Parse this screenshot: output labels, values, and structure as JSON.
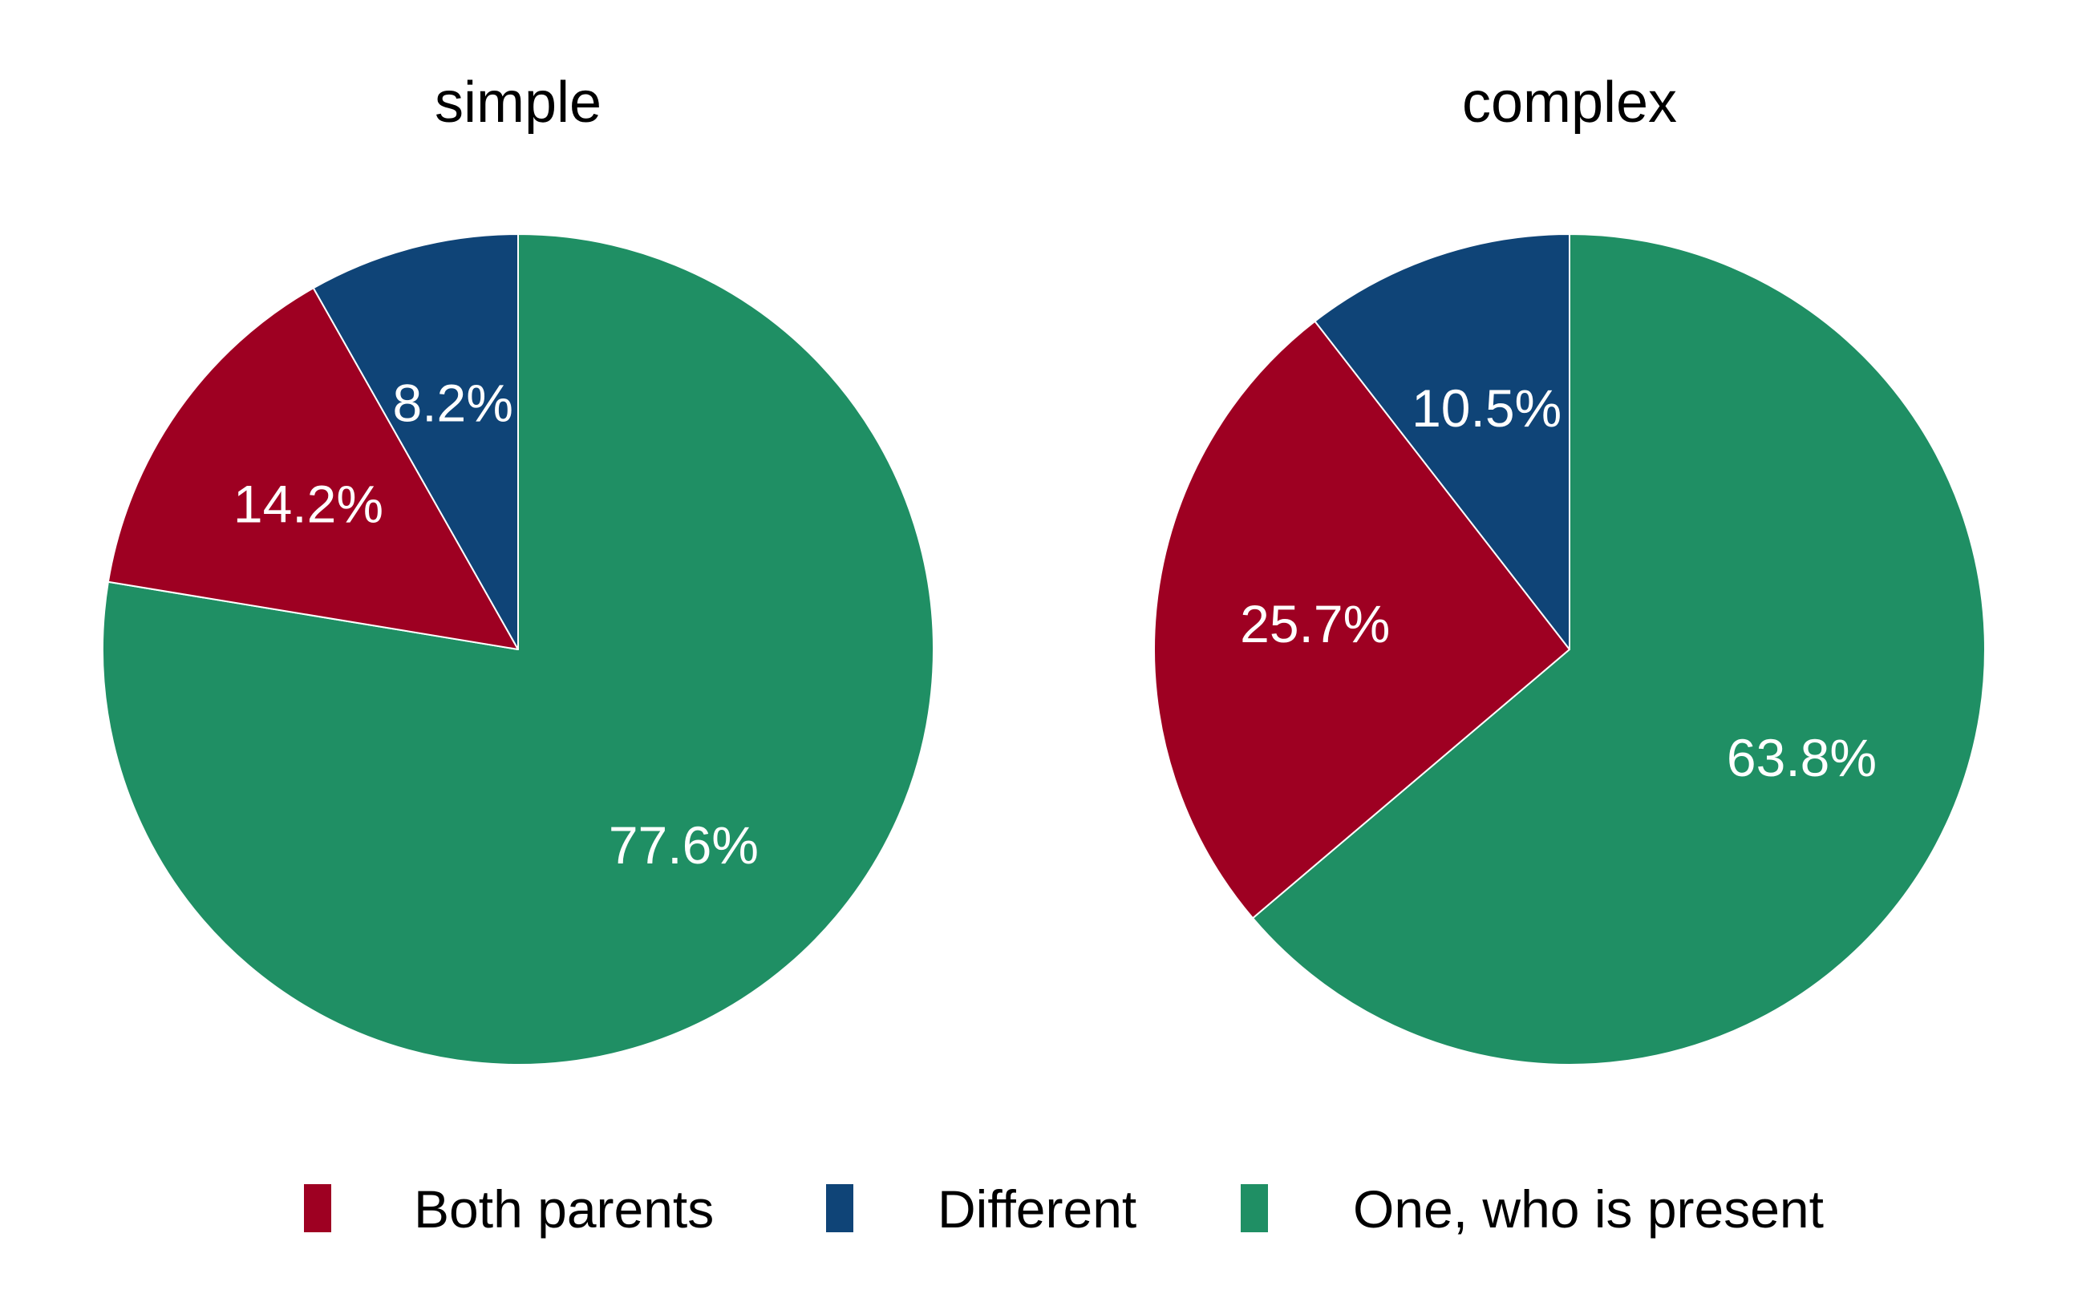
{
  "chart_data": [
    {
      "type": "pie",
      "title": "simple",
      "slices": [
        {
          "label": "One, who is present",
          "value": 77.6,
          "display": "77.6%"
        },
        {
          "label": "Both parents",
          "value": 14.2,
          "display": "14.2%"
        },
        {
          "label": "Different",
          "value": 8.2,
          "display": "8.2%"
        }
      ]
    },
    {
      "type": "pie",
      "title": "complex",
      "slices": [
        {
          "label": "One, who is present",
          "value": 63.8,
          "display": "63.8%"
        },
        {
          "label": "Both parents",
          "value": 25.7,
          "display": "25.7%"
        },
        {
          "label": "Different",
          "value": 10.5,
          "display": "10.5%"
        }
      ]
    }
  ],
  "legend": {
    "placement": "bottom",
    "items": [
      {
        "label": "Both parents",
        "color": "#9e0022"
      },
      {
        "label": "Different",
        "color": "#0f4477"
      },
      {
        "label": "One, who is present",
        "color": "#1f8f64"
      }
    ]
  },
  "colors": {
    "Both parents": "#9e0022",
    "Different": "#0f4477",
    "One, who is present": "#1f8f64",
    "slice_border": "#ffffff",
    "slice_label": "#ffffff",
    "text": "#000000"
  }
}
